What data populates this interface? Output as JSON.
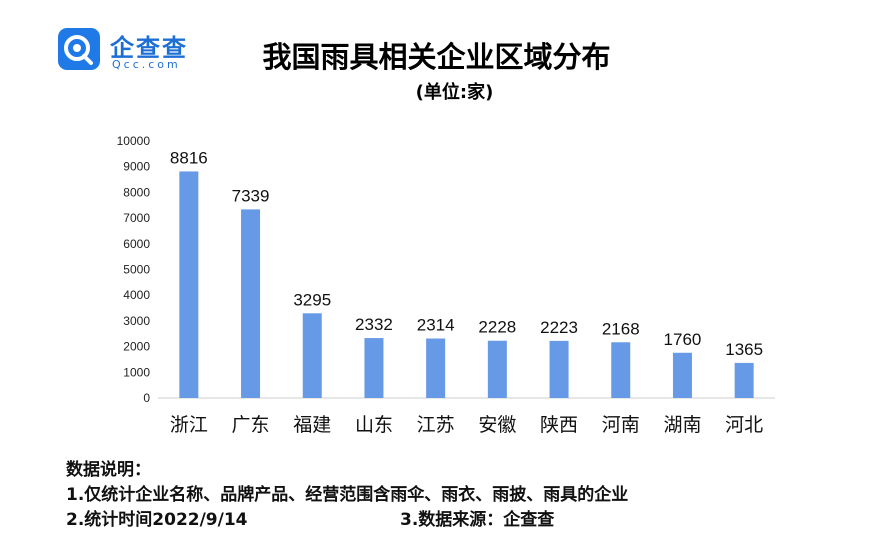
{
  "logo": {
    "name": "企查查",
    "sub": "Qcc.com",
    "icon": "qcc-logo-icon",
    "color": "#1f7ae8"
  },
  "title": "我国雨具相关企业区域分布",
  "subtitle": "(单位:家)",
  "chart_data": {
    "type": "bar",
    "categories": [
      "浙江",
      "广东",
      "福建",
      "山东",
      "江苏",
      "安徽",
      "陕西",
      "河南",
      "湖南",
      "河北"
    ],
    "values": [
      8816,
      7339,
      3295,
      2332,
      2314,
      2228,
      2223,
      2168,
      1760,
      1365
    ],
    "yticks": [
      0,
      1000,
      2000,
      3000,
      4000,
      5000,
      6000,
      7000,
      8000,
      9000,
      10000
    ],
    "ylim": [
      0,
      10000
    ],
    "bar_color": "#6699e6",
    "grid": false,
    "legend": "none"
  },
  "notes": {
    "heading": "数据说明：",
    "line1": "1.仅统计企业名称、品牌产品、经营范围含雨伞、雨衣、雨披、雨具的企业",
    "line2": "2.统计时间2022/9/14",
    "line3": "3.数据来源：企查查"
  }
}
